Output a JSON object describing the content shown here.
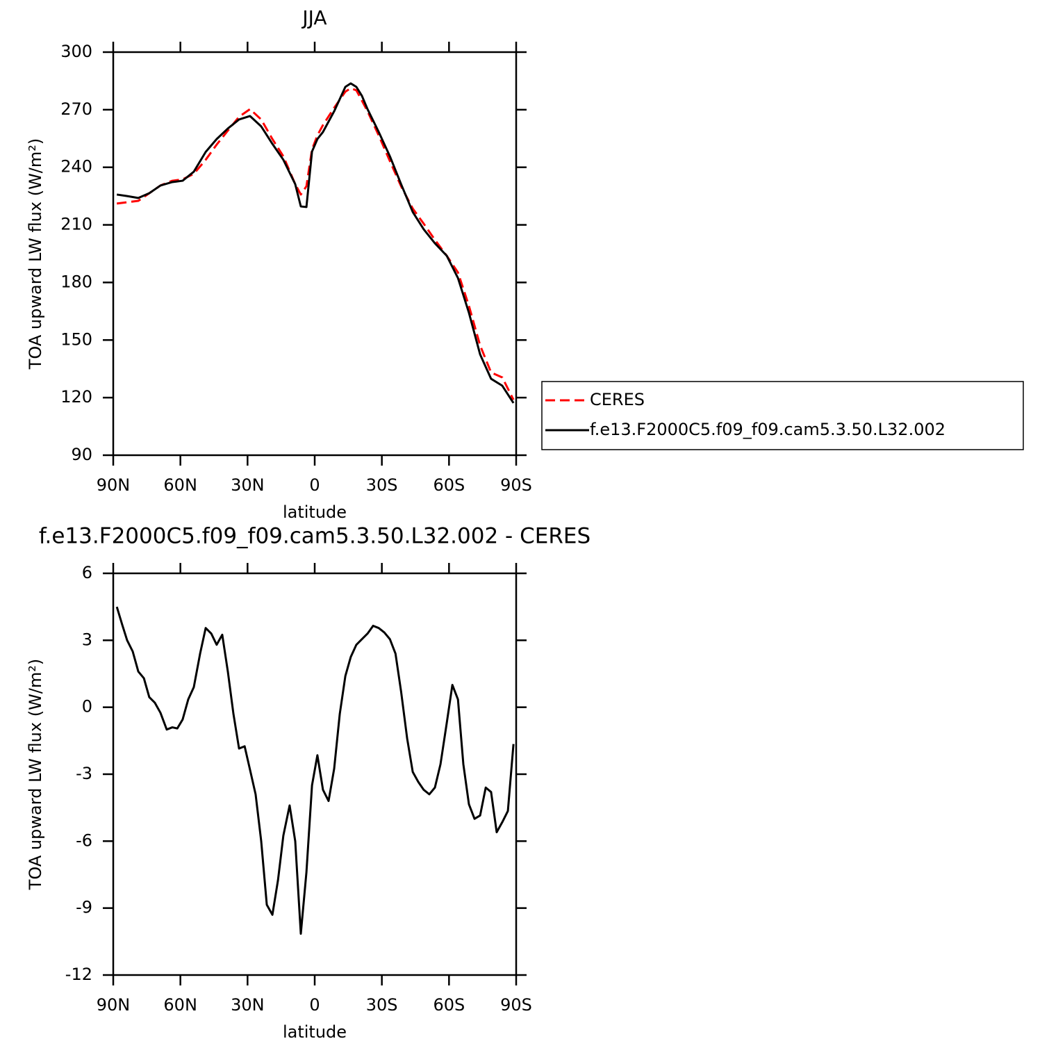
{
  "chart_data": [
    {
      "type": "line",
      "title": "JJA",
      "xlabel": "latitude",
      "ylabel": "TOA upward LW flux (W/m²)",
      "x": [
        88.4,
        83.8,
        78.8,
        73.9,
        68.9,
        63.6,
        59.0,
        54.0,
        48.7,
        43.8,
        38.8,
        33.8,
        28.9,
        23.9,
        18.9,
        14.0,
        8.7,
        6.2,
        3.7,
        1.2,
        -1.2,
        -3.7,
        -8.7,
        -13.7,
        -16.1,
        -18.6,
        -21.1,
        -23.6,
        -28.6,
        -33.6,
        -38.6,
        -43.8,
        -48.7,
        -53.7,
        -59.0,
        -64.0,
        -68.9,
        -73.9,
        -78.8,
        -83.8,
        -88.8
      ],
      "xlim": [
        90,
        -90
      ],
      "xticks": [
        {
          "value": 90,
          "label": "90N"
        },
        {
          "value": 60,
          "label": "60N"
        },
        {
          "value": 30,
          "label": "30N"
        },
        0,
        {
          "value": -30,
          "label": "30S"
        },
        {
          "value": -60,
          "label": "60S"
        },
        {
          "value": -90,
          "label": "90S"
        }
      ],
      "ylim": [
        90,
        300
      ],
      "yticks": [
        90,
        120,
        150,
        180,
        210,
        240,
        270,
        300
      ],
      "legend": "right",
      "series": [
        {
          "name": "CERES",
          "color": "#ff0000",
          "dashed": true,
          "values": [
            221.1,
            221.8,
            222.5,
            226.5,
            230.5,
            233.0,
            233.7,
            236.6,
            243.9,
            251.8,
            259.1,
            266.3,
            270.3,
            264.9,
            254.7,
            245.7,
            231.2,
            225.8,
            230.1,
            249.3,
            256.6,
            262.0,
            271.0,
            279.4,
            281.2,
            280.1,
            274.7,
            269.2,
            256.6,
            243.2,
            230.1,
            218.5,
            210.6,
            202.2,
            193.9,
            185.2,
            167.8,
            147.2,
            133.1,
            130.5,
            118.9
          ]
        },
        {
          "name": "f.e13.F2000C5.f09_f09.cam5.3.50.L32.002",
          "color": "#000000",
          "dashed": false,
          "values": [
            225.8,
            225.0,
            224.0,
            226.5,
            230.5,
            232.3,
            233.0,
            237.7,
            248.0,
            254.7,
            260.2,
            264.9,
            266.7,
            261.3,
            252.2,
            243.9,
            231.2,
            219.6,
            219.3,
            248.2,
            254.7,
            258.4,
            269.2,
            281.9,
            283.7,
            281.9,
            277.2,
            270.3,
            258.4,
            245.7,
            231.2,
            216.7,
            207.7,
            200.4,
            193.9,
            182.3,
            164.2,
            142.5,
            129.8,
            126.2,
            117.2
          ]
        }
      ]
    },
    {
      "type": "line",
      "title": "f.e13.F2000C5.f09_f09.cam5.3.50.L32.002 - CERES",
      "xlabel": "latitude",
      "ylabel": "TOA upward LW flux (W/m²)",
      "x": [
        88.4,
        86.0,
        83.8,
        81.3,
        78.8,
        76.3,
        73.9,
        71.4,
        68.9,
        66.1,
        63.6,
        61.4,
        59.0,
        56.5,
        54.0,
        51.2,
        48.7,
        46.2,
        43.8,
        41.3,
        38.8,
        36.3,
        33.8,
        31.3,
        28.9,
        26.4,
        23.9,
        21.4,
        18.9,
        16.4,
        14.0,
        11.2,
        8.7,
        6.2,
        3.7,
        1.2,
        -1.2,
        -3.7,
        -6.2,
        -8.7,
        -11.2,
        -13.7,
        -16.1,
        -18.6,
        -21.1,
        -23.6,
        -26.1,
        -28.6,
        -31.1,
        -33.6,
        -36.1,
        -38.6,
        -41.3,
        -43.8,
        -46.3,
        -48.7,
        -51.2,
        -53.7,
        -56.2,
        -59.0,
        -61.5,
        -64.0,
        -66.4,
        -68.9,
        -71.4,
        -73.9,
        -76.4,
        -78.8,
        -81.3,
        -83.8,
        -86.3,
        -88.8
      ],
      "xlim": [
        90,
        -90
      ],
      "xticks": [
        {
          "value": 90,
          "label": "90N"
        },
        {
          "value": 60,
          "label": "60N"
        },
        {
          "value": 30,
          "label": "30N"
        },
        0,
        {
          "value": -30,
          "label": "30S"
        },
        {
          "value": -60,
          "label": "60S"
        },
        {
          "value": -90,
          "label": "90S"
        }
      ],
      "ylim": [
        -12,
        6
      ],
      "yticks": [
        -12,
        -9,
        -6,
        -3,
        0,
        3,
        6
      ],
      "color": "#000000",
      "values": [
        4.5,
        3.7,
        3.0,
        2.5,
        1.6,
        1.3,
        0.45,
        0.2,
        -0.25,
        -1.0,
        -0.9,
        -0.95,
        -0.55,
        0.35,
        0.9,
        2.4,
        3.55,
        3.3,
        2.8,
        3.25,
        1.6,
        -0.3,
        -1.85,
        -1.75,
        -2.8,
        -3.9,
        -6.0,
        -8.85,
        -9.3,
        -7.75,
        -5.75,
        -4.4,
        -6.0,
        -10.15,
        -7.4,
        -3.5,
        -2.15,
        -3.7,
        -4.2,
        -2.75,
        -0.3,
        1.4,
        2.25,
        2.8,
        3.05,
        3.3,
        3.65,
        3.55,
        3.35,
        3.05,
        2.4,
        0.7,
        -1.4,
        -2.9,
        -3.35,
        -3.7,
        -3.9,
        -3.6,
        -2.55,
        -0.7,
        1.0,
        0.35,
        -2.55,
        -4.35,
        -5.0,
        -4.85,
        -3.6,
        -3.8,
        -5.6,
        -5.15,
        -4.65,
        -1.65
      ]
    }
  ]
}
